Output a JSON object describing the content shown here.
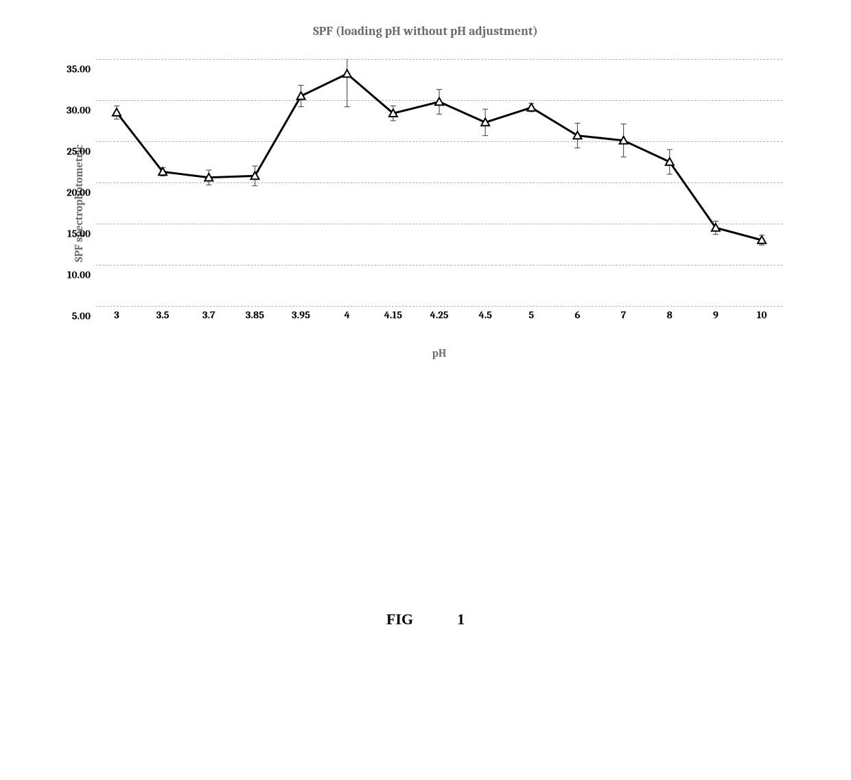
{
  "chart": {
    "type": "line",
    "title": "SPF (loading pH without pH adjustment)",
    "title_fontsize": 18,
    "title_color": "#6a6a6a",
    "ylabel": "SPF spectrophotometric",
    "xlabel": "pH",
    "label_fontsize": 16,
    "label_color": "#6a6a6a",
    "tick_fontsize": 15,
    "tick_fontweight": "bold",
    "tick_color": "#000000",
    "ylim": [
      5,
      35
    ],
    "ytick_step": 5,
    "yticks": [
      "35.00",
      "30.00",
      "25.00",
      "20.00",
      "15.00",
      "10.00",
      "5.00"
    ],
    "xticks": [
      "3",
      "3.5",
      "3.7",
      "3.85",
      "3.95",
      "4",
      "4.15",
      "4.25",
      "4.5",
      "5",
      "6",
      "7",
      "8",
      "9",
      "10"
    ],
    "grid_color": "#b0b0b0",
    "grid_style": "dashed",
    "background_color": "#ffffff",
    "line_color": "#000000",
    "line_width": 3,
    "marker_style": "triangle",
    "marker_size": 6,
    "marker_fill": "#ffffff",
    "marker_stroke": "#000000",
    "marker_stroke_width": 2,
    "errorbar_color": "#555555",
    "errorbar_width": 1.2,
    "errorbar_cap_width": 8,
    "series": {
      "x_labels": [
        "3",
        "3.5",
        "3.7",
        "3.85",
        "3.95",
        "4",
        "4.15",
        "4.25",
        "4.5",
        "5",
        "6",
        "7",
        "8",
        "9",
        "10"
      ],
      "y": [
        28.5,
        21.3,
        20.6,
        20.8,
        30.5,
        33.2,
        28.4,
        29.8,
        27.3,
        29.1,
        25.7,
        25.1,
        22.5,
        14.5,
        13.0
      ],
      "y_err": [
        0.8,
        0.5,
        0.9,
        1.2,
        1.3,
        4.0,
        0.9,
        1.5,
        1.6,
        0.5,
        1.5,
        2.0,
        1.5,
        0.8,
        0.6
      ]
    }
  },
  "figure_label": {
    "prefix": "FIG",
    "number": "1",
    "fontsize": 22
  }
}
